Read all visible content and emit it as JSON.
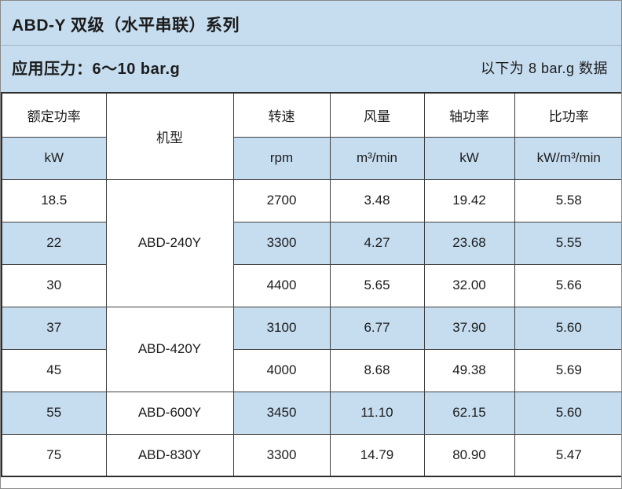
{
  "banner": {
    "title": "ABD-Y 双级（水平串联）系列",
    "pressure": "应用压力：6～10 bar.g",
    "note": "以下为 8 bar.g 数据"
  },
  "colors": {
    "banner_bg": "#c6ddf0",
    "stripe_bg": "#c6ddf0",
    "grid_border": "#3f3f3f",
    "outer_border": "#2e2e2e",
    "frame_border": "#8a8a8a",
    "text": "#1c1c1c"
  },
  "table": {
    "header": {
      "power": "额定功率",
      "power_unit": "kW",
      "model": "机型",
      "speed": "转速",
      "speed_unit": "rpm",
      "flow": "风量",
      "flow_unit": "m³/min",
      "shaft": "轴功率",
      "shaft_unit": "kW",
      "specific": "比功率",
      "specific_unit": "kW/m³/min"
    },
    "models": [
      {
        "name": "ABD-240Y"
      },
      {
        "name": "ABD-420Y"
      },
      {
        "name": "ABD-600Y"
      },
      {
        "name": "ABD-830Y"
      }
    ],
    "rows": [
      {
        "kw": "18.5",
        "rpm": "2700",
        "flow": "3.48",
        "shaft": "19.42",
        "specific": "5.58"
      },
      {
        "kw": "22",
        "rpm": "3300",
        "flow": "4.27",
        "shaft": "23.68",
        "specific": "5.55"
      },
      {
        "kw": "30",
        "rpm": "4400",
        "flow": "5.65",
        "shaft": "32.00",
        "specific": "5.66"
      },
      {
        "kw": "37",
        "rpm": "3100",
        "flow": "6.77",
        "shaft": "37.90",
        "specific": "5.60"
      },
      {
        "kw": "45",
        "rpm": "4000",
        "flow": "8.68",
        "shaft": "49.38",
        "specific": "5.69"
      },
      {
        "kw": "55",
        "rpm": "3450",
        "flow": "11.10",
        "shaft": "62.15",
        "specific": "5.60"
      },
      {
        "kw": "75",
        "rpm": "3300",
        "flow": "14.79",
        "shaft": "80.90",
        "specific": "5.47"
      }
    ]
  },
  "chart_data": {
    "type": "table",
    "title": "ABD-Y 双级（水平串联）系列 — 应用压力 6～10 bar.g（以下为 8 bar.g 数据）",
    "columns": [
      "额定功率 kW",
      "机型",
      "转速 rpm",
      "风量 m³/min",
      "轴功率 kW",
      "比功率 kW/m³/min"
    ],
    "rows": [
      [
        "18.5",
        "ABD-240Y",
        "2700",
        "3.48",
        "19.42",
        "5.58"
      ],
      [
        "22",
        "ABD-240Y",
        "3300",
        "4.27",
        "23.68",
        "5.55"
      ],
      [
        "30",
        "ABD-240Y",
        "4400",
        "5.65",
        "32.00",
        "5.66"
      ],
      [
        "37",
        "ABD-420Y",
        "3100",
        "6.77",
        "37.90",
        "5.60"
      ],
      [
        "45",
        "ABD-420Y",
        "4000",
        "8.68",
        "49.38",
        "5.69"
      ],
      [
        "55",
        "ABD-600Y",
        "3450",
        "11.10",
        "62.15",
        "5.60"
      ],
      [
        "75",
        "ABD-830Y",
        "3300",
        "14.79",
        "80.90",
        "5.47"
      ]
    ]
  }
}
